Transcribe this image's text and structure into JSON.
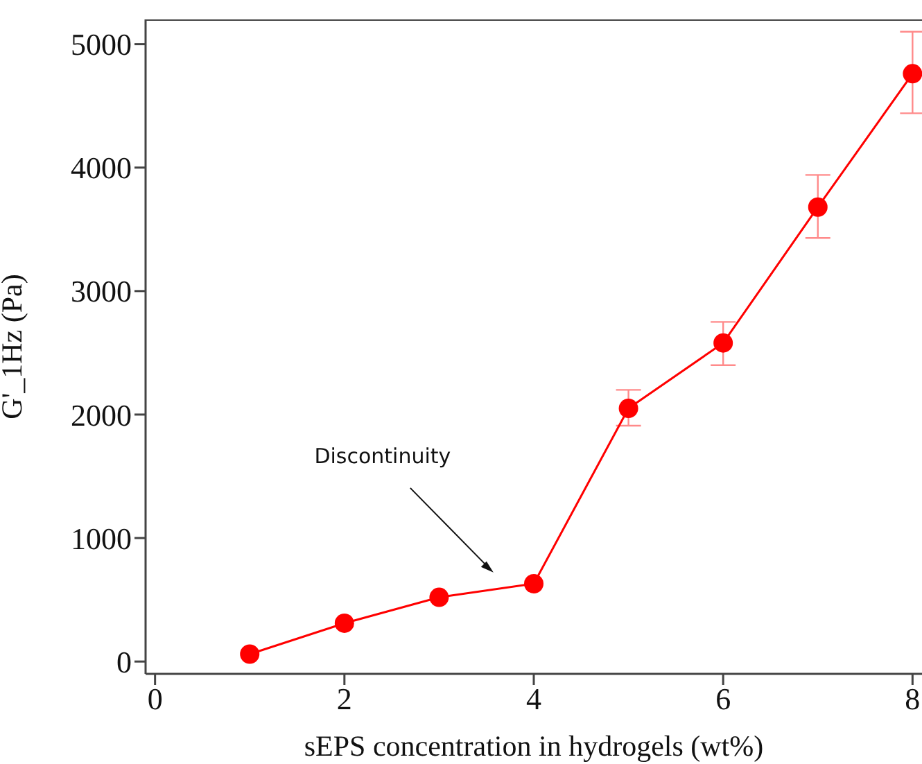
{
  "chart_data": {
    "type": "line",
    "xlabel": "sEPS concentration in hydrogels (wt%)",
    "ylabel": "G'_1Hz (Pa)",
    "x": [
      1,
      2,
      3,
      4,
      5,
      6,
      7,
      8
    ],
    "series": [
      {
        "color": "#ff0000",
        "values": [
          60,
          310,
          520,
          630,
          2050,
          2580,
          3680,
          4760
        ],
        "errors": [
          null,
          null,
          null,
          null,
          [
            1910,
            2200
          ],
          [
            2400,
            2750
          ],
          [
            3430,
            3940
          ],
          [
            4440,
            5100
          ]
        ]
      }
    ],
    "xlim": [
      -0.1,
      8.1
    ],
    "xticks": [
      0,
      2,
      4,
      6,
      8
    ],
    "ylim": [
      -100,
      5200
    ],
    "yticks": [
      0,
      1000,
      2000,
      3000,
      4000,
      5000
    ],
    "marker": "circle",
    "line_style": "solid",
    "grid": false,
    "legend": false,
    "annotations": [
      "Discontinuity"
    ]
  }
}
